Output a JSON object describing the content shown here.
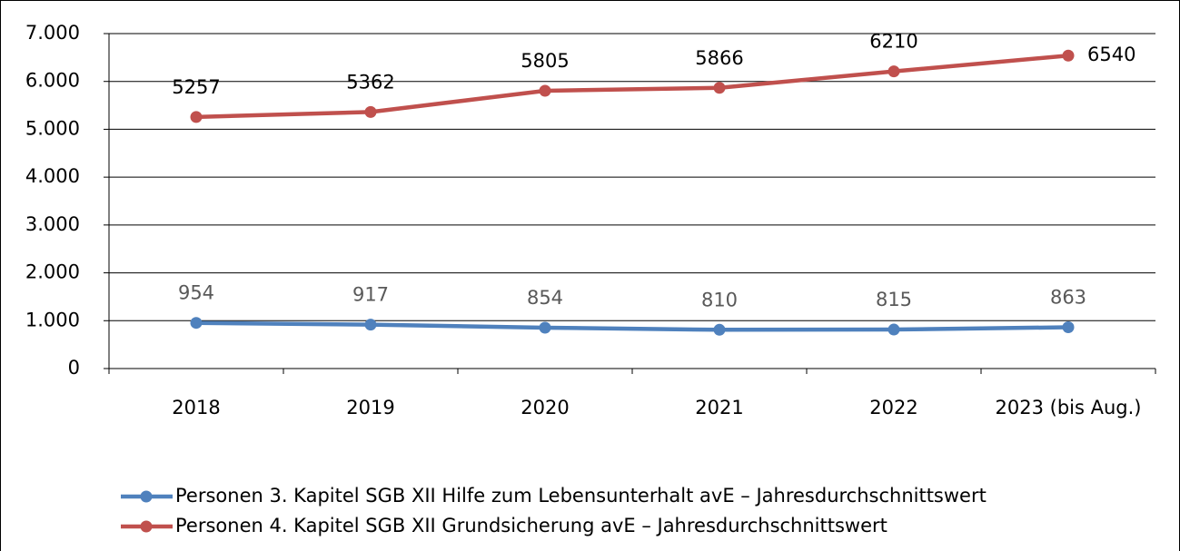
{
  "chart_data": {
    "type": "line",
    "categories": [
      "2018",
      "2019",
      "2020",
      "2021",
      "2022",
      "2023 (bis Aug.)"
    ],
    "series": [
      {
        "name": "Personen 3. Kapitel SGB XII Hilfe zum Lebensunterhalt avE – Jahresdurchschnittswert",
        "color": "#4f81bd",
        "values": [
          954,
          917,
          854,
          810,
          815,
          863
        ]
      },
      {
        "name": "Personen 4. Kapitel SGB XII Grundsicherung avE – Jahresdurchschnittswert",
        "color": "#c0504d",
        "values": [
          5257,
          5362,
          5805,
          5866,
          6210,
          6540
        ]
      }
    ],
    "ylim": [
      0,
      7000
    ],
    "yticks": [
      0,
      {
        "value": 1000,
        "label": "1.000"
      },
      {
        "value": 2000,
        "label": "2.000"
      },
      {
        "value": 3000,
        "label": "3.000"
      },
      {
        "value": 4000,
        "label": "4.000"
      },
      {
        "value": 5000,
        "label": "5.000"
      },
      {
        "value": 6000,
        "label": "6.000"
      },
      {
        "value": 7000,
        "label": "7.000"
      }
    ],
    "grid": true,
    "legend": "bottom"
  }
}
